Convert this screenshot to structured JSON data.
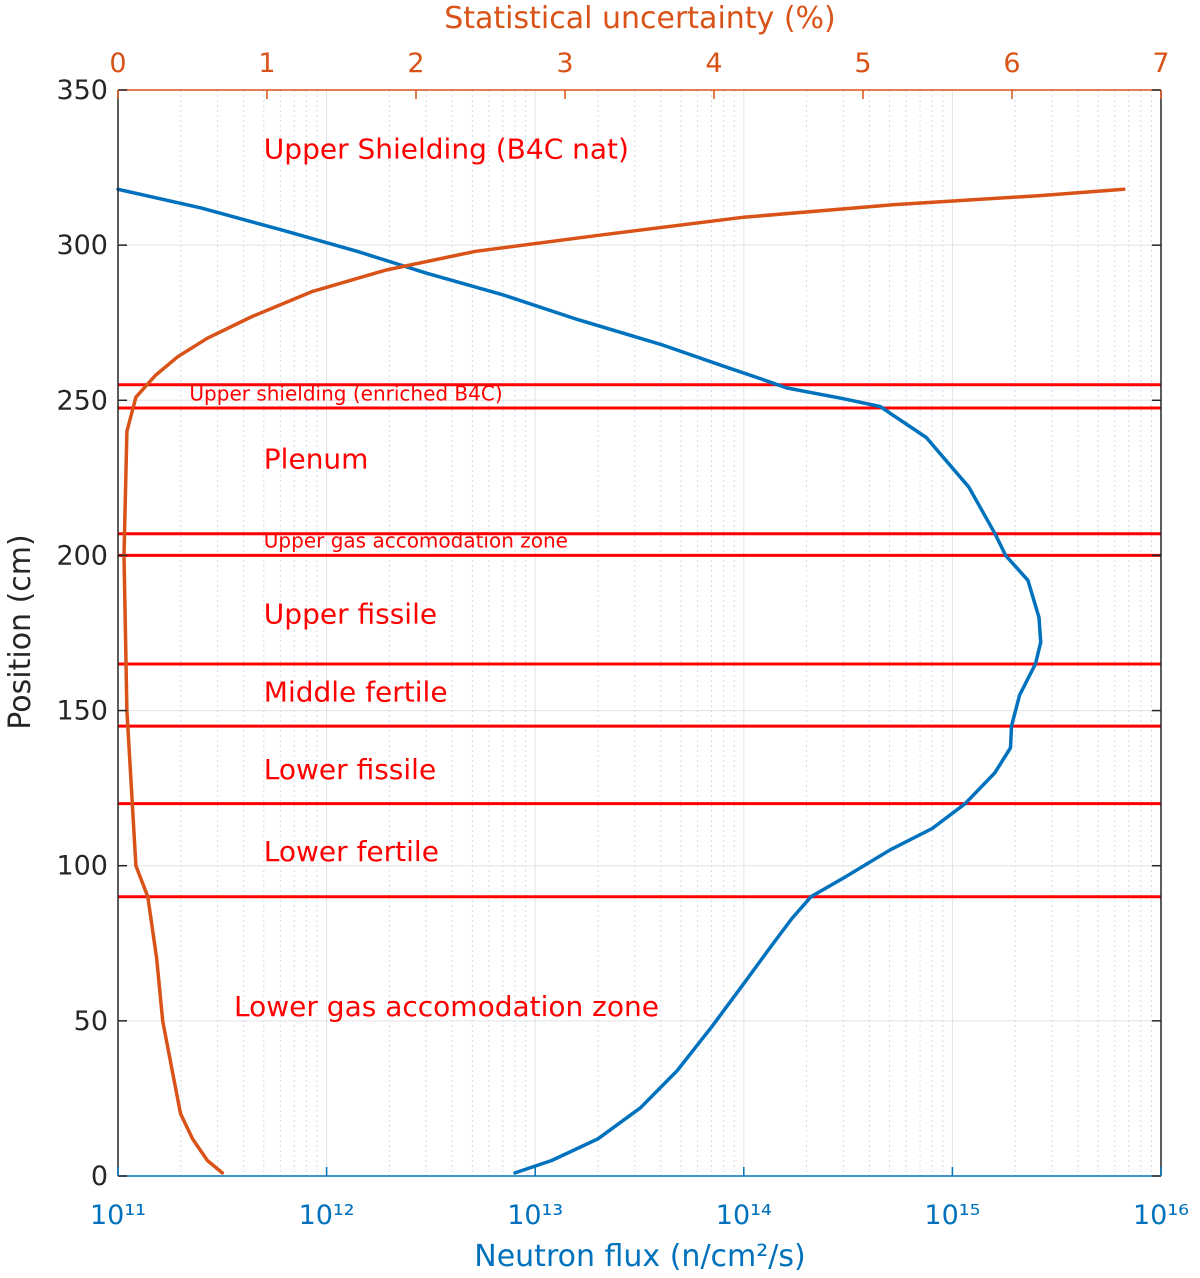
{
  "colors": {
    "flux": "#0072BD",
    "uncertainty": "#D95319",
    "zones": "#FF0000",
    "axis": "#262626",
    "grid": "#E3E3E3",
    "minor_grid": "#C9DFF0"
  },
  "chart_data": {
    "type": "line",
    "axes": {
      "left": {
        "label": "Position (cm)",
        "range": [
          0,
          350
        ],
        "ticks": [
          "0",
          "50",
          "100",
          "150",
          "200",
          "250",
          "300",
          "350"
        ]
      },
      "bottom": {
        "label": "Neutron flux (n/cm²/s)",
        "scale": "log",
        "range": [
          100000000000.0,
          1e+16
        ],
        "ticks": [
          "10¹¹",
          "10¹²",
          "10¹³",
          "10¹⁴",
          "10¹⁵",
          "10¹⁶"
        ]
      },
      "top": {
        "label": "Statistical uncertainty (%)",
        "range": [
          0,
          7
        ],
        "ticks": [
          "0",
          "1",
          "2",
          "3",
          "4",
          "5",
          "6",
          "7"
        ]
      }
    },
    "grid": true,
    "series": [
      {
        "axis": "bottom",
        "points": [
          [
            8000000000000.0,
            1
          ],
          [
            12000000000000.0,
            5
          ],
          [
            20000000000000.0,
            12
          ],
          [
            32000000000000.0,
            22
          ],
          [
            48000000000000.0,
            34
          ],
          [
            70000000000000.0,
            48
          ],
          [
            100000000000000.0,
            62
          ],
          [
            135000000000000.0,
            74
          ],
          [
            170000000000000.0,
            83
          ],
          [
            210000000000000.0,
            90
          ],
          [
            300000000000000.0,
            96
          ],
          [
            500000000000000.0,
            105
          ],
          [
            800000000000000.0,
            112
          ],
          [
            1150000000000000.0,
            120
          ],
          [
            1600000000000000.0,
            130
          ],
          [
            1900000000000000.0,
            138
          ],
          [
            1920000000000000.0,
            145
          ],
          [
            2100000000000000.0,
            155
          ],
          [
            2500000000000000.0,
            165
          ],
          [
            2650000000000000.0,
            172
          ],
          [
            2600000000000000.0,
            180
          ],
          [
            2300000000000000.0,
            192
          ],
          [
            1800000000000000.0,
            200
          ],
          [
            1600000000000000.0,
            207
          ],
          [
            1200000000000000.0,
            222
          ],
          [
            750000000000000.0,
            238
          ],
          [
            450000000000000.0,
            248
          ],
          [
            300000000000000.0,
            250.5
          ],
          [
            160000000000000.0,
            254
          ],
          [
            120000000000000.0,
            257
          ],
          [
            80000000000000.0,
            261
          ],
          [
            40000000000000.0,
            268
          ],
          [
            16000000000000.0,
            276
          ],
          [
            7000000000000.0,
            284
          ],
          [
            3000000000000.0,
            291
          ],
          [
            1400000000000.0,
            298
          ],
          [
            600000000000.0,
            305
          ],
          [
            250000000000.0,
            312
          ],
          [
            100000000000.0,
            318
          ]
        ]
      },
      {
        "axis": "top",
        "points": [
          [
            0.7,
            1
          ],
          [
            0.6,
            5
          ],
          [
            0.5,
            12
          ],
          [
            0.42,
            20
          ],
          [
            0.36,
            35
          ],
          [
            0.3,
            50
          ],
          [
            0.26,
            70
          ],
          [
            0.2,
            90
          ],
          [
            0.12,
            100
          ],
          [
            0.06,
            150
          ],
          [
            0.04,
            200
          ],
          [
            0.06,
            240
          ],
          [
            0.12,
            251
          ],
          [
            0.25,
            258
          ],
          [
            0.4,
            264
          ],
          [
            0.6,
            270
          ],
          [
            0.9,
            277
          ],
          [
            1.3,
            285
          ],
          [
            1.8,
            292
          ],
          [
            2.4,
            298
          ],
          [
            3.2,
            303
          ],
          [
            4.2,
            309
          ],
          [
            5.2,
            313
          ],
          [
            6.2,
            316
          ],
          [
            6.75,
            318
          ]
        ]
      }
    ],
    "boundaries": [
      255,
      247.5,
      207,
      200,
      165,
      145,
      120,
      90
    ],
    "annotations": [
      {
        "text": "Upper Shielding (B4C nat)",
        "x": 500000000000.0,
        "y": 328,
        "size": "large"
      },
      {
        "text": "Upper shielding (enriched B4C)",
        "x": 220000000000.0,
        "y": 250,
        "size": "small"
      },
      {
        "text": "Plenum",
        "x": 500000000000.0,
        "y": 228,
        "size": "large"
      },
      {
        "text": "Upper gas accomodation zone",
        "x": 500000000000.0,
        "y": 202.5,
        "size": "small"
      },
      {
        "text": "Upper fissile",
        "x": 500000000000.0,
        "y": 178,
        "size": "large"
      },
      {
        "text": "Middle fertile",
        "x": 500000000000.0,
        "y": 153,
        "size": "large"
      },
      {
        "text": "Lower fissile",
        "x": 500000000000.0,
        "y": 128,
        "size": "large"
      },
      {
        "text": "Lower fertile",
        "x": 500000000000.0,
        "y": 101.5,
        "size": "large"
      },
      {
        "text": "Lower gas accomodation zone",
        "x": 360000000000.0,
        "y": 51.5,
        "size": "large"
      }
    ]
  }
}
